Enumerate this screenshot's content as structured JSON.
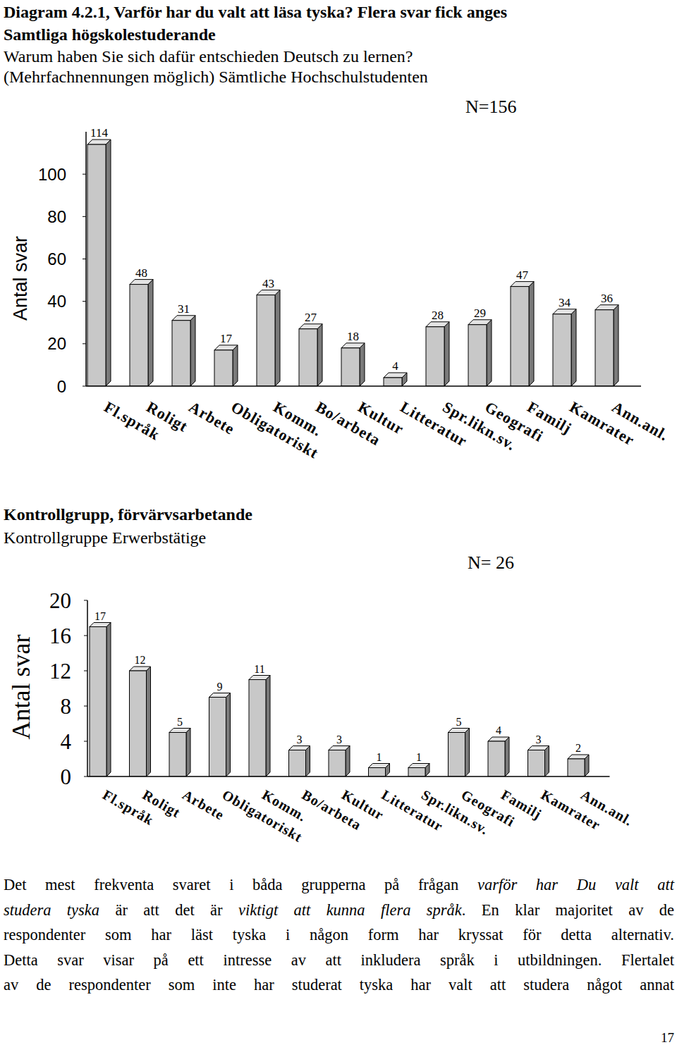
{
  "heading": [
    "Diagram 4.2.1, Varför har du valt att läsa tyska? Flera svar fick anges",
    "Samtliga högskolestuderande"
  ],
  "subheading": [
    "Warum haben Sie sich dafür entschieden Deutsch zu lernen?",
    "(Mehrfachnennungen möglich) Sämtliche Hochschulstudenten"
  ],
  "chart_data": [
    {
      "type": "bar",
      "annotation": "N=156",
      "y_label": "Antal svar",
      "categories": [
        "Fl.språk",
        "Roligt",
        "Arbete",
        "Obligatoriskt",
        "Komm.",
        "Bo/arbeta",
        "Kultur",
        "Litteratur",
        "Spr.likn.sv.",
        "Geografi",
        "Familj",
        "Kamrater",
        "Ann.anl."
      ],
      "values": [
        114,
        48,
        31,
        17,
        43,
        27,
        18,
        4,
        28,
        29,
        47,
        34,
        36
      ],
      "color": "#c8c8c8",
      "ylim": [
        0,
        120
      ],
      "yticks": [
        0,
        20,
        40,
        60,
        80,
        100
      ],
      "grid": false,
      "data_labels": true
    },
    {
      "type": "bar",
      "title": "Kontrollgrupp, förvärvsarbetande",
      "subtitle": "Kontrollgruppe Erwerbstätige",
      "annotation": "N= 26",
      "y_label": "Antal svar",
      "categories": [
        "Fl.språk",
        "Roligt",
        "Arbete",
        "Obligatoriskt",
        "Komm.",
        "Bo/arbeta",
        "Kultur",
        "Litteratur",
        "Spr.likn.sv.",
        "Geografi",
        "Familj",
        "Kamrater",
        "Ann.anl."
      ],
      "values": [
        17,
        12,
        5,
        9,
        11,
        3,
        3,
        1,
        1,
        5,
        4,
        3,
        2
      ],
      "color": "#c8c8c8",
      "ylim": [
        0,
        20
      ],
      "yticks": [
        0,
        4,
        8,
        12,
        16,
        20
      ],
      "grid": false,
      "data_labels": true
    }
  ],
  "body": [
    [
      {
        "text": "Det mest frekventa svaret i båda grupperna på frågan "
      },
      {
        "text": "varför har Du valt att",
        "italic": true
      }
    ],
    [
      {
        "text": "studera tyska",
        "italic": true
      },
      {
        "text": " är att det är "
      },
      {
        "text": "viktigt att kunna flera språk",
        "italic": true
      },
      {
        "text": ". En klar majoritet av de"
      }
    ],
    [
      {
        "text": "respondenter som har läst tyska i någon form har kryssat för detta alternativ."
      }
    ],
    [
      {
        "text": "Detta svar visar på ett intresse av att inkludera språk i utbildningen. Flertalet"
      }
    ],
    [
      {
        "text": "av de respondenter som inte har studerat tyska har valt att studera något annat"
      }
    ]
  ],
  "page_number": 17
}
